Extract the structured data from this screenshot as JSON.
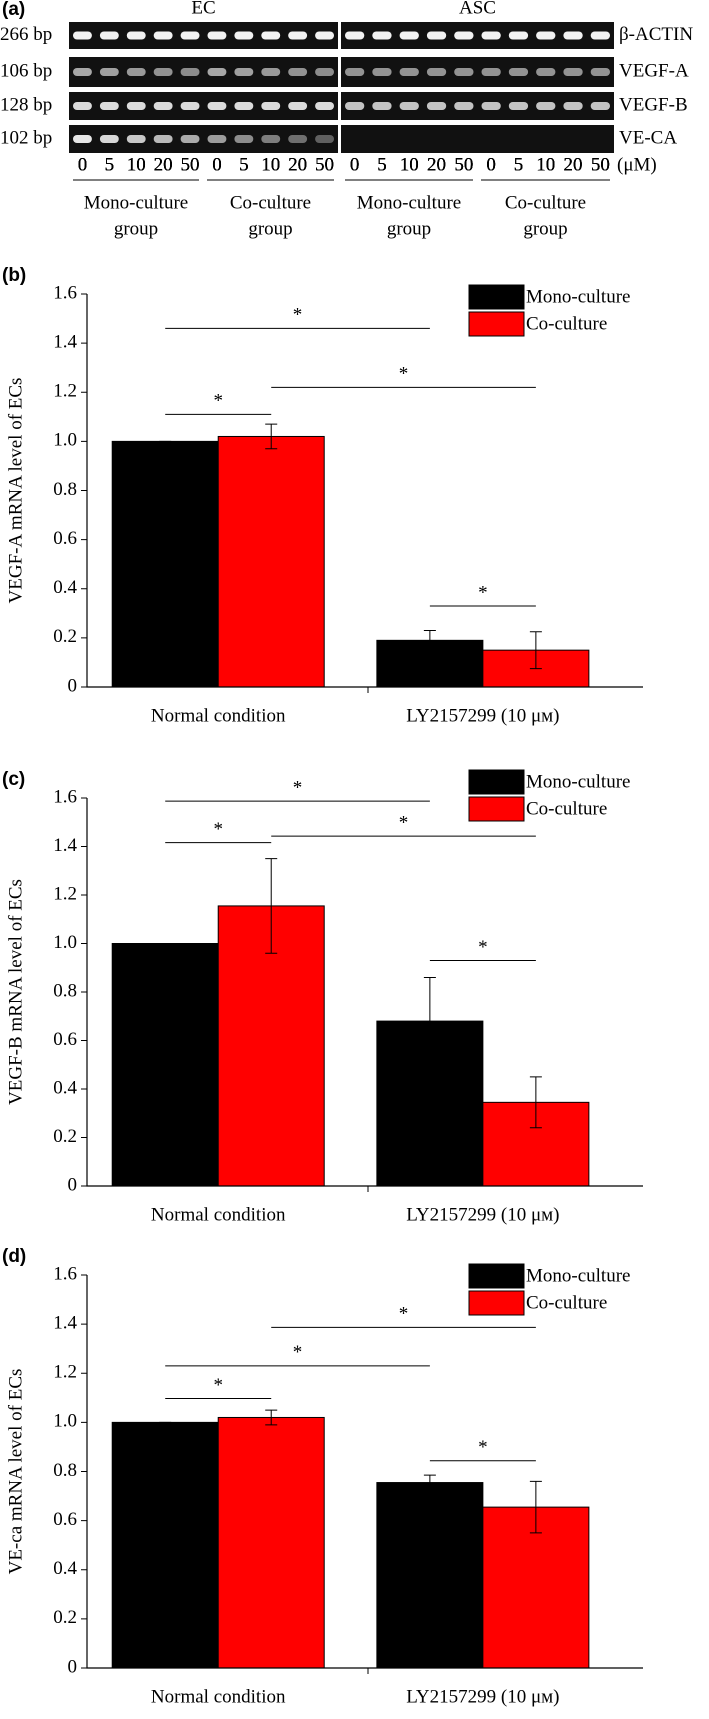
{
  "gel": {
    "panel_label": "(a)",
    "groups": [
      "EC",
      "ASC"
    ],
    "band_sizes": [
      "266 bp",
      "106 bp",
      "128 bp",
      "102 bp"
    ],
    "genes": [
      "β-ACTIN",
      "VEGF-A",
      "VEGF-B",
      "VE-CA"
    ],
    "concentrations": [
      "0",
      "5",
      "10",
      "20",
      "50"
    ],
    "unit": "(μM)",
    "culture_groups": [
      [
        "Mono-culture",
        "group"
      ],
      [
        "Co-culture",
        "group"
      ],
      [
        "Mono-culture",
        "group"
      ],
      [
        "Co-culture",
        "group"
      ]
    ]
  },
  "chart_data": [
    {
      "type": "bar",
      "panel_label": "(b)",
      "y_label": "VEGF-A mRNA level of ECs",
      "categories": [
        "Normal condition",
        "LY2157299 (10 μм)"
      ],
      "series": [
        {
          "name": "Mono-culture",
          "color": "#000000",
          "values": [
            1.0,
            0.19
          ],
          "errors": [
            0,
            0.04
          ]
        },
        {
          "name": "Co-culture",
          "color": "#ff0000",
          "values": [
            1.02,
            0.15
          ],
          "errors": [
            0.05,
            0.075
          ]
        }
      ],
      "ylim": [
        0,
        1.6
      ],
      "yticks": [
        0,
        0.2,
        0.4,
        0.6,
        0.8,
        {
          "value": 1,
          "label": "1.0"
        },
        1.2,
        1.4,
        1.6
      ],
      "legend": "upper right",
      "significance": [
        {
          "label": "*",
          "y": 1.46
        },
        {
          "label": "*",
          "y": 1.22
        },
        {
          "label": "*",
          "y": 1.11
        },
        {
          "label": "*",
          "y": 0.33
        }
      ]
    },
    {
      "type": "bar",
      "panel_label": "(c)",
      "y_label": "VEGF-B mRNA level of ECs",
      "categories": [
        "Normal condition",
        "LY2157299 (10 μм)"
      ],
      "series": [
        {
          "name": "Mono-culture",
          "color": "#000000",
          "values": [
            1.0,
            0.68
          ],
          "errors": [
            0,
            0.18
          ]
        },
        {
          "name": "Co-culture",
          "color": "#ff0000",
          "values": [
            1.155,
            0.345
          ],
          "errors": [
            0.195,
            0.105
          ]
        }
      ],
      "ylim": [
        0,
        1.6
      ],
      "yticks": [
        0,
        0.2,
        0.4,
        0.6,
        0.8,
        {
          "value": 1,
          "label": "1.0"
        },
        1.2,
        1.4,
        1.6
      ],
      "legend": "upper right",
      "significance": [
        {
          "label": "*",
          "y": 1.587
        },
        {
          "label": "*",
          "y": 1.443
        },
        {
          "label": "*",
          "y": 1.416
        },
        {
          "label": "*",
          "y": 0.93
        }
      ]
    },
    {
      "type": "bar",
      "panel_label": "(d)",
      "y_label": "VE-ca mRNA level of ECs",
      "categories": [
        "Normal condition",
        "LY2157299 (10 μм)"
      ],
      "series": [
        {
          "name": "Mono-culture",
          "color": "#000000",
          "values": [
            1.0,
            0.755
          ],
          "errors": [
            0,
            0.03
          ]
        },
        {
          "name": "Co-culture",
          "color": "#ff0000",
          "values": [
            1.02,
            0.655
          ],
          "errors": [
            0.03,
            0.105
          ]
        }
      ],
      "ylim": [
        0,
        1.6
      ],
      "yticks": [
        0,
        0.2,
        0.4,
        0.6,
        0.8,
        {
          "value": 1,
          "label": "1.0"
        },
        1.2,
        1.4,
        1.6
      ],
      "legend": "upper right",
      "significance": [
        {
          "label": "*",
          "y": 1.23
        },
        {
          "label": "*",
          "y": 1.387
        },
        {
          "label": "*",
          "y": 1.097
        },
        {
          "label": "*",
          "y": 0.844
        }
      ]
    }
  ]
}
